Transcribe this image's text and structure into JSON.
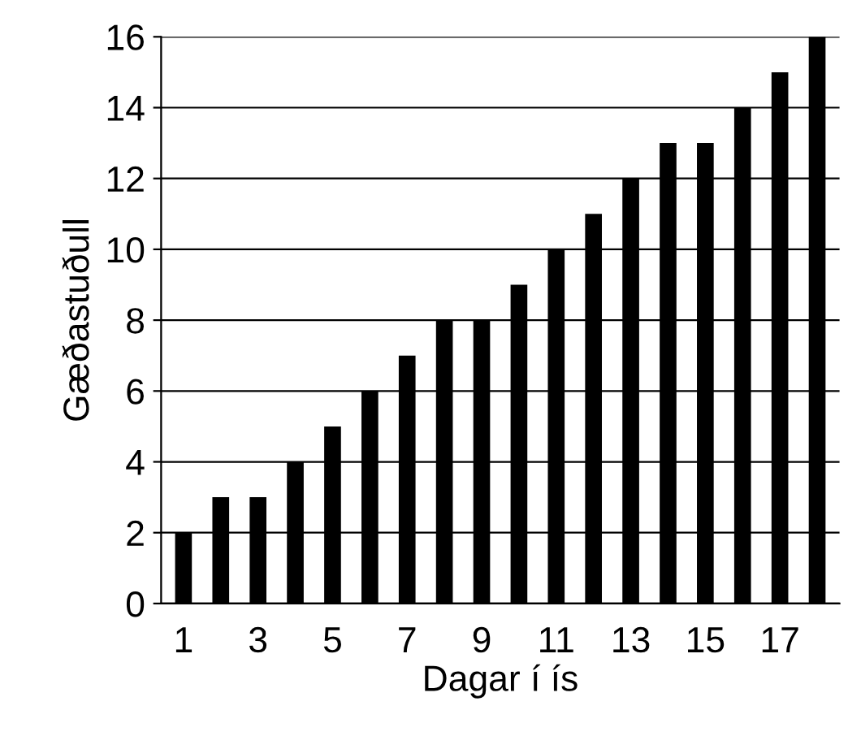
{
  "chart_data": {
    "type": "bar",
    "xlabel": "Dagar í ís",
    "ylabel": "Gæðastuðull",
    "categories": [
      "1",
      null,
      "3",
      null,
      "5",
      null,
      "7",
      null,
      "9",
      null,
      "11",
      null,
      "13",
      null,
      "15",
      null,
      "17",
      null
    ],
    "values": [
      2,
      3,
      3,
      4,
      5,
      6,
      7,
      8,
      8,
      9,
      10,
      11,
      12,
      13,
      13,
      14,
      15,
      16
    ],
    "color": "#000000",
    "ylim": [
      0,
      16
    ],
    "yticks": [
      0,
      2,
      4,
      6,
      8,
      10,
      12,
      14,
      16
    ],
    "grid": "y"
  }
}
